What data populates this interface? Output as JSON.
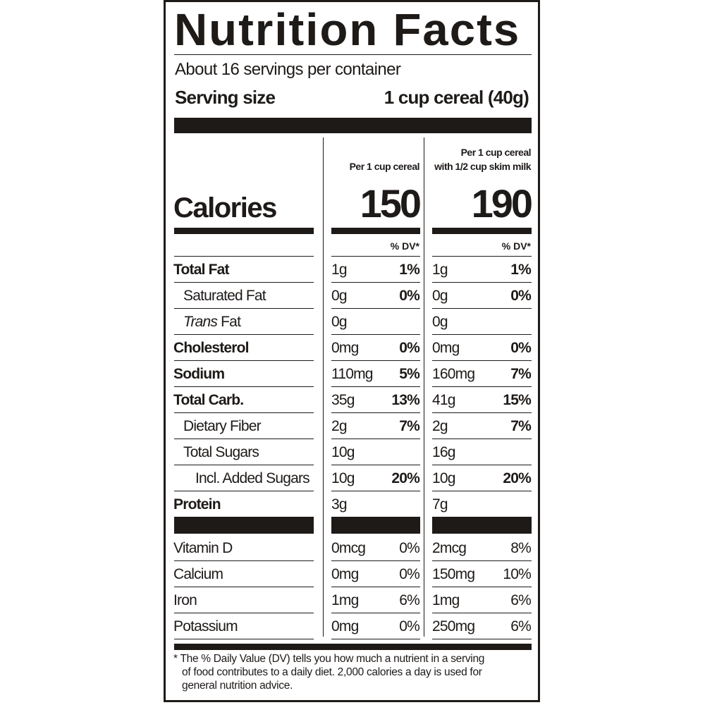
{
  "title": "Nutrition Facts",
  "servings_per_container": "About 16 servings per container",
  "serving_size_label": "Serving size",
  "serving_size_value": "1 cup cereal (40g)",
  "columns": {
    "col1_header": [
      "",
      "Per 1 cup cereal"
    ],
    "col2_header": [
      "Per 1 cup cereal",
      "with 1/2 cup skim milk"
    ]
  },
  "calories_label": "Calories",
  "calories": [
    "150",
    "190"
  ],
  "dv_header": "% DV*",
  "nutrients": [
    {
      "name": "Total Fat",
      "bold": true,
      "indent": 0,
      "italic_prefix": "",
      "c1_amt": "1g",
      "c1_dv": "1%",
      "c2_amt": "1g",
      "c2_dv": "1%"
    },
    {
      "name": "Saturated Fat",
      "bold": false,
      "indent": 1,
      "italic_prefix": "",
      "c1_amt": "0g",
      "c1_dv": "0%",
      "c2_amt": "0g",
      "c2_dv": "0%"
    },
    {
      "name": " Fat",
      "bold": false,
      "indent": 1,
      "italic_prefix": "Trans",
      "c1_amt": "0g",
      "c1_dv": "",
      "c2_amt": "0g",
      "c2_dv": ""
    },
    {
      "name": "Cholesterol",
      "bold": true,
      "indent": 0,
      "italic_prefix": "",
      "c1_amt": "0mg",
      "c1_dv": "0%",
      "c2_amt": "0mg",
      "c2_dv": "0%"
    },
    {
      "name": "Sodium",
      "bold": true,
      "indent": 0,
      "italic_prefix": "",
      "c1_amt": "110mg",
      "c1_dv": "5%",
      "c2_amt": "160mg",
      "c2_dv": "7%"
    },
    {
      "name": "Total Carb.",
      "bold": true,
      "indent": 0,
      "italic_prefix": "",
      "c1_amt": "35g",
      "c1_dv": "13%",
      "c2_amt": "41g",
      "c2_dv": "15%"
    },
    {
      "name": "Dietary Fiber",
      "bold": false,
      "indent": 1,
      "italic_prefix": "",
      "c1_amt": "2g",
      "c1_dv": "7%",
      "c2_amt": "2g",
      "c2_dv": "7%"
    },
    {
      "name": "Total Sugars",
      "bold": false,
      "indent": 1,
      "italic_prefix": "",
      "c1_amt": "10g",
      "c1_dv": "",
      "c2_amt": "16g",
      "c2_dv": ""
    },
    {
      "name": "Incl. Added Sugars",
      "bold": false,
      "indent": 2,
      "italic_prefix": "",
      "c1_amt": "10g",
      "c1_dv": "20%",
      "c2_amt": "10g",
      "c2_dv": "20%"
    },
    {
      "name": "Protein",
      "bold": true,
      "indent": 0,
      "italic_prefix": "",
      "c1_amt": "3g",
      "c1_dv": "",
      "c2_amt": "7g",
      "c2_dv": ""
    }
  ],
  "vitamins": [
    {
      "name": "Vitamin D",
      "c1_amt": "0mcg",
      "c1_dv": "0%",
      "c2_amt": "2mcg",
      "c2_dv": "8%"
    },
    {
      "name": "Calcium",
      "c1_amt": "0mg",
      "c1_dv": "0%",
      "c2_amt": "150mg",
      "c2_dv": "10%"
    },
    {
      "name": "Iron",
      "c1_amt": "1mg",
      "c1_dv": "6%",
      "c2_amt": "1mg",
      "c2_dv": "6%"
    },
    {
      "name": "Potassium",
      "c1_amt": "0mg",
      "c1_dv": "0%",
      "c2_amt": "250mg",
      "c2_dv": "6%"
    }
  ],
  "footnote": [
    "* The % Daily Value (DV) tells you how much a nutrient in a serving",
    "of food contributes to a daily diet. 2,000 calories a day is used for",
    "general nutrition advice."
  ],
  "colors": {
    "ink": "#1e1a18",
    "background": "#ffffff"
  }
}
